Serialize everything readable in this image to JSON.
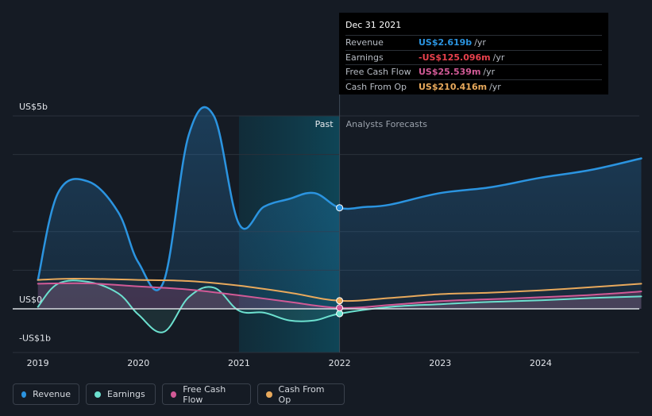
{
  "chart_data": {
    "type": "area",
    "title": "",
    "ylabel": "",
    "xlabel": "",
    "ylim": [
      -1.3,
      5.6
    ],
    "y_ticks": [
      {
        "value": 5,
        "label": "US$5b"
      },
      {
        "value": 0,
        "label": "US$0"
      },
      {
        "value": -1,
        "label": "-US$1b"
      }
    ],
    "x_ticks": [
      {
        "value": 2019.0,
        "label": "2019"
      },
      {
        "value": 2020.0,
        "label": "2020"
      },
      {
        "value": 2021.0,
        "label": "2021"
      },
      {
        "value": 2022.0,
        "label": "2022"
      },
      {
        "value": 2023.0,
        "label": "2023"
      },
      {
        "value": 2024.0,
        "label": "2024"
      }
    ],
    "past_label": "Past",
    "forecast_label": "Analysts Forecasts",
    "divider_x": 2022.0,
    "highlight_start_x": 2021.0,
    "series": [
      {
        "name": "Revenue",
        "color": "#2b94e0",
        "fill": true,
        "x": [
          2019.0,
          2019.2,
          2019.5,
          2019.8,
          2020.0,
          2020.25,
          2020.5,
          2020.75,
          2021.0,
          2021.25,
          2021.5,
          2021.75,
          2022.0,
          2022.25,
          2022.5,
          2023.0,
          2023.5,
          2024.0,
          2024.5,
          2025.0
        ],
        "values": [
          0.75,
          3.0,
          3.3,
          2.5,
          1.2,
          0.7,
          4.5,
          5.0,
          2.2,
          2.65,
          2.85,
          3.0,
          2.619,
          2.64,
          2.7,
          3.0,
          3.15,
          3.4,
          3.6,
          3.9
        ]
      },
      {
        "name": "Earnings",
        "color": "#6ce0cf",
        "fill": true,
        "x": [
          2019.0,
          2019.2,
          2019.5,
          2019.8,
          2020.0,
          2020.25,
          2020.5,
          2020.75,
          2021.0,
          2021.25,
          2021.5,
          2021.75,
          2022.0,
          2022.5,
          2023.0,
          2023.5,
          2024.0,
          2024.5,
          2025.0
        ],
        "values": [
          0.05,
          0.65,
          0.7,
          0.4,
          -0.15,
          -0.6,
          0.3,
          0.55,
          -0.05,
          -0.1,
          -0.3,
          -0.3,
          -0.125,
          0.05,
          0.12,
          0.18,
          0.22,
          0.28,
          0.32
        ]
      },
      {
        "name": "Free Cash Flow",
        "color": "#d15a96",
        "fill": true,
        "x": [
          2019.0,
          2019.5,
          2020.0,
          2020.5,
          2021.0,
          2021.5,
          2022.0,
          2022.5,
          2023.0,
          2023.5,
          2024.0,
          2024.5,
          2025.0
        ],
        "values": [
          0.65,
          0.66,
          0.58,
          0.5,
          0.35,
          0.18,
          0.0255,
          0.1,
          0.2,
          0.25,
          0.3,
          0.36,
          0.45
        ]
      },
      {
        "name": "Cash From Op",
        "color": "#e8a95c",
        "fill": false,
        "x": [
          2019.0,
          2019.3,
          2019.7,
          2020.0,
          2020.5,
          2021.0,
          2021.5,
          2022.0,
          2022.5,
          2023.0,
          2023.5,
          2024.0,
          2024.5,
          2025.0
        ],
        "values": [
          0.75,
          0.78,
          0.77,
          0.75,
          0.72,
          0.6,
          0.42,
          0.21,
          0.28,
          0.38,
          0.42,
          0.48,
          0.56,
          0.65
        ]
      }
    ],
    "markers": [
      {
        "series": "Revenue",
        "x": 2022.0,
        "value": 2.619
      },
      {
        "series": "Earnings",
        "x": 2022.0,
        "value": -0.125
      },
      {
        "series": "Free Cash Flow",
        "x": 2022.0,
        "value": 0.0255
      },
      {
        "series": "Cash From Op",
        "x": 2022.0,
        "value": 0.21
      }
    ]
  },
  "tooltip": {
    "date": "Dec 31 2021",
    "rows": [
      {
        "label": "Revenue",
        "value": "US$2.619b",
        "unit": "/yr",
        "color": "#2b94e0"
      },
      {
        "label": "Earnings",
        "value": "-US$125.096m",
        "unit": "/yr",
        "color": "#e8414c"
      },
      {
        "label": "Free Cash Flow",
        "value": "US$25.539m",
        "unit": "/yr",
        "color": "#d15a96"
      },
      {
        "label": "Cash From Op",
        "value": "US$210.416m",
        "unit": "/yr",
        "color": "#e8a95c"
      }
    ]
  },
  "legend": [
    {
      "label": "Revenue",
      "color": "#2b94e0"
    },
    {
      "label": "Earnings",
      "color": "#6ce0cf"
    },
    {
      "label": "Free Cash Flow",
      "color": "#d15a96"
    },
    {
      "label": "Cash From Op",
      "color": "#e8a95c"
    }
  ]
}
